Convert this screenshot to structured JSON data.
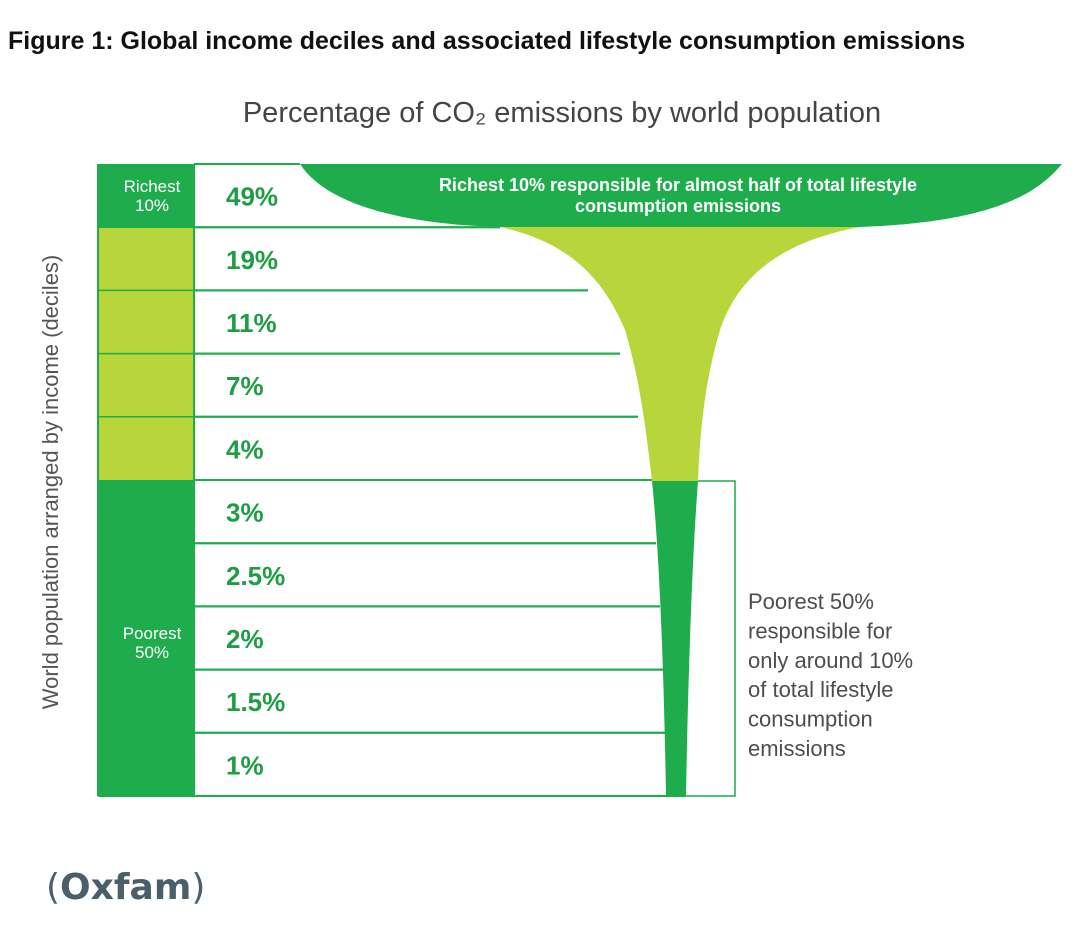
{
  "figure_title": "Figure 1: Global income deciles and associated lifestyle consumption emissions",
  "chart_data": {
    "type": "bar",
    "title": "Percentage of CO₂ emissions by world population",
    "ylabel": "World population arranged by income (deciles)",
    "xlabel": "",
    "categories": [
      "Richest 10%",
      "",
      "",
      "",
      "",
      "",
      "",
      "",
      "",
      ""
    ],
    "values": [
      49,
      19,
      11,
      7,
      4,
      3,
      2.5,
      2,
      1.5,
      1
    ],
    "value_labels": [
      "49%",
      "19%",
      "11%",
      "7%",
      "4%",
      "3%",
      "2.5%",
      "2%",
      "1.5%",
      "1%"
    ],
    "group_labels": {
      "richest_line1": "Richest",
      "richest_line2": "10%",
      "poorest_line1": "Poorest",
      "poorest_line2": "50%"
    },
    "annotations": {
      "richest_line1": "Richest 10% responsible for almost half of total lifestyle",
      "richest_line2": "consumption emissions",
      "poorest_lines": [
        "Poorest 50%",
        "responsible for",
        "only around 10%",
        "of total lifestyle",
        "consumption",
        "emissions"
      ]
    },
    "colors": {
      "dark_green": "#1eac4d",
      "light_green": "#b8d63b",
      "label_green": "#1e9d43",
      "border": "#1eac4d",
      "title_gray": "#444444",
      "annotation_gray": "#4d4d4d"
    }
  },
  "caption": {
    "open_paren": "(",
    "brand": "Oxfam",
    "close_paren": ")"
  }
}
